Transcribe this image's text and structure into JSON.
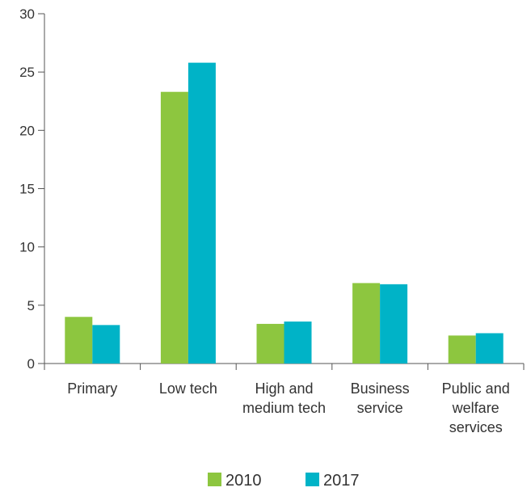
{
  "chart_data": {
    "type": "bar",
    "categories": [
      [
        "Primary"
      ],
      [
        "Low tech"
      ],
      [
        "High and",
        "medium tech"
      ],
      [
        "Business",
        "service"
      ],
      [
        "Public and",
        "welfare",
        "services"
      ]
    ],
    "series": [
      {
        "name": "2010",
        "color": "#8dc63f",
        "values": [
          4.0,
          23.3,
          3.4,
          6.9,
          2.4
        ]
      },
      {
        "name": "2017",
        "color": "#00b3c7",
        "values": [
          3.3,
          25.8,
          3.6,
          6.8,
          2.6
        ]
      }
    ],
    "ylim": [
      0,
      30
    ],
    "yticks": [
      "0",
      "5",
      "10",
      "15",
      "20",
      "25",
      "30"
    ],
    "grid": false,
    "legend_position": "bottom-center"
  }
}
